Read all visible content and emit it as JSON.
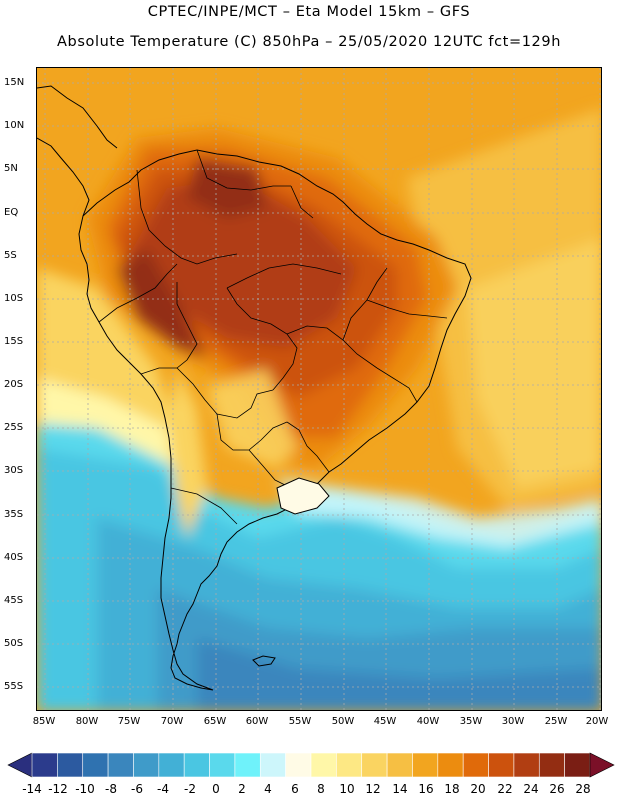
{
  "title": {
    "line1": "CPTEC/INPE/MCT –  Eta Model 15km – GFS",
    "line2": "Absolute Temperature (C) 850hPa – 25/05/2020 12UTC fct=129h"
  },
  "map": {
    "lat_labels": [
      "15N",
      "10N",
      "5N",
      "EQ",
      "5S",
      "10S",
      "15S",
      "20S",
      "25S",
      "30S",
      "35S",
      "40S",
      "45S",
      "50S",
      "55S"
    ],
    "lon_labels": [
      "85W",
      "80W",
      "75W",
      "70W",
      "65W",
      "60W",
      "55W",
      "50W",
      "45W",
      "40W",
      "35W",
      "30W",
      "25W",
      "20W"
    ]
  },
  "colorbar": {
    "labels": [
      "-14",
      "-12",
      "-10",
      "-8",
      "-6",
      "-4",
      "-2",
      "0",
      "2",
      "4",
      "6",
      "8",
      "10",
      "12",
      "14",
      "16",
      "18",
      "20",
      "22",
      "24",
      "26",
      "28"
    ],
    "colors": [
      "#2b3b8c",
      "#2c5aa0",
      "#2f72b0",
      "#3a86bd",
      "#3f9bc9",
      "#42b0d6",
      "#4ac6e2",
      "#5ad9ec",
      "#6ff2fa",
      "#cdf6fb",
      "#fffbe6",
      "#fff7a8",
      "#fde884",
      "#fad461",
      "#f6bf43",
      "#f2a51f",
      "#ec8c0f",
      "#e06a0a",
      "#cc520d",
      "#b13e12",
      "#932d12",
      "#7a1e14"
    ],
    "low_color": "#2a2f7e",
    "high_color": "#7b1028"
  }
}
